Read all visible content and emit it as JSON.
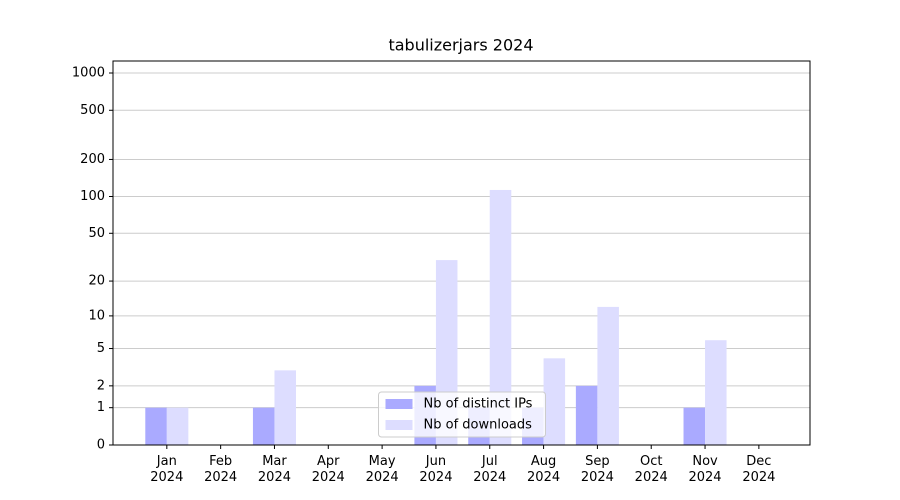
{
  "chart_data": {
    "type": "bar",
    "title": "tabulizerjars 2024",
    "categories": [
      "Jan 2024",
      "Feb 2024",
      "Mar 2024",
      "Apr 2024",
      "May 2024",
      "Jun 2024",
      "Jul 2024",
      "Aug 2024",
      "Sep 2024",
      "Oct 2024",
      "Nov 2024",
      "Dec 2024"
    ],
    "series": [
      {
        "name": "Nb of distinct IPs",
        "color": "#aaaaff",
        "values": [
          1,
          0,
          1,
          0,
          0,
          2,
          1,
          1,
          2,
          0,
          1,
          0
        ]
      },
      {
        "name": "Nb of downloads",
        "color": "#ddddff",
        "values": [
          1,
          0,
          3,
          0,
          0,
          30,
          113,
          4,
          12,
          0,
          6,
          0
        ]
      }
    ],
    "y_scale": "log1p",
    "ylim": [
      0,
      1250
    ],
    "yticks": [
      0,
      1,
      2,
      5,
      10,
      20,
      50,
      100,
      200,
      500,
      1000
    ],
    "grid": true,
    "legend_position": "lower center"
  }
}
